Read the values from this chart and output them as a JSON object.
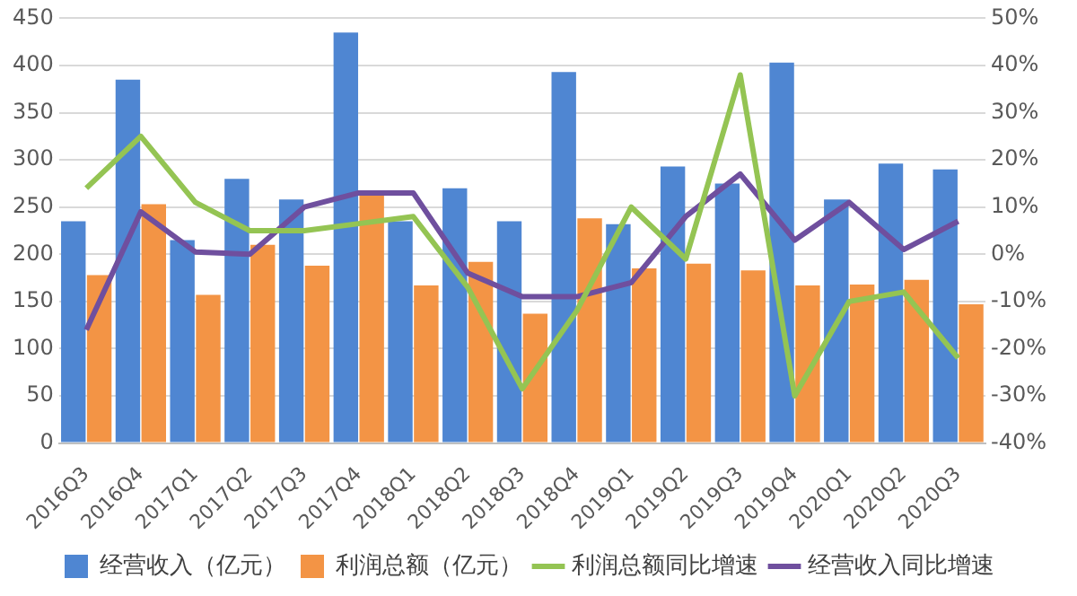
{
  "chart_data": {
    "type": "bar",
    "categories": [
      "2016Q3",
      "2016Q4",
      "2017Q1",
      "2017Q2",
      "2017Q3",
      "2017Q4",
      "2018Q1",
      "2018Q2",
      "2018Q3",
      "2018Q4",
      "2019Q1",
      "2019Q2",
      "2019Q3",
      "2019Q4",
      "2020Q1",
      "2020Q2",
      "2020Q3"
    ],
    "series": [
      {
        "name": "经营收入（亿元）",
        "color": "#4f86d2",
        "values": [
          235,
          385,
          215,
          280,
          258,
          435,
          235,
          270,
          235,
          393,
          232,
          293,
          275,
          403,
          258,
          296,
          290
        ]
      },
      {
        "name": "利润总额（亿元）",
        "color": "#f39445",
        "values": [
          178,
          253,
          157,
          210,
          188,
          265,
          167,
          192,
          137,
          238,
          185,
          190,
          183,
          167,
          168,
          173,
          147
        ]
      },
      {
        "name": "利润总额同比增速",
        "type": "line",
        "axis": "y2",
        "color": "#94c453",
        "values": [
          14,
          25,
          11,
          5,
          5,
          6.5,
          8,
          -7,
          -28.5,
          -12,
          10,
          -1,
          38,
          -30,
          -10,
          -8,
          -22
        ]
      },
      {
        "name": "经营收入同比增速",
        "type": "line",
        "axis": "y2",
        "color": "#6f4f9e",
        "values": [
          -16,
          9,
          0.5,
          0,
          10,
          13,
          13,
          -4,
          -9,
          -9,
          -6,
          8,
          17,
          3,
          11,
          1,
          7
        ]
      }
    ],
    "ylim": [
      0,
      450
    ],
    "yticks": [
      0,
      50,
      100,
      150,
      200,
      250,
      300,
      350,
      400,
      450
    ],
    "y2lim": [
      -40,
      50
    ],
    "y2ticks": [
      {
        "value": -40,
        "label": "-40%"
      },
      {
        "value": -30,
        "label": "-30%"
      },
      {
        "value": -20,
        "label": "-20%"
      },
      {
        "value": -10,
        "label": "-10%"
      },
      {
        "value": 0,
        "label": "0%"
      },
      {
        "value": 10,
        "label": "10%"
      },
      {
        "value": 20,
        "label": "20%"
      },
      {
        "value": 30,
        "label": "30%"
      },
      {
        "value": 40,
        "label": "40%"
      },
      {
        "value": 50,
        "label": "50%"
      }
    ],
    "grid": "y",
    "legend": "bottom",
    "marker": "none",
    "line_style": "solid"
  }
}
